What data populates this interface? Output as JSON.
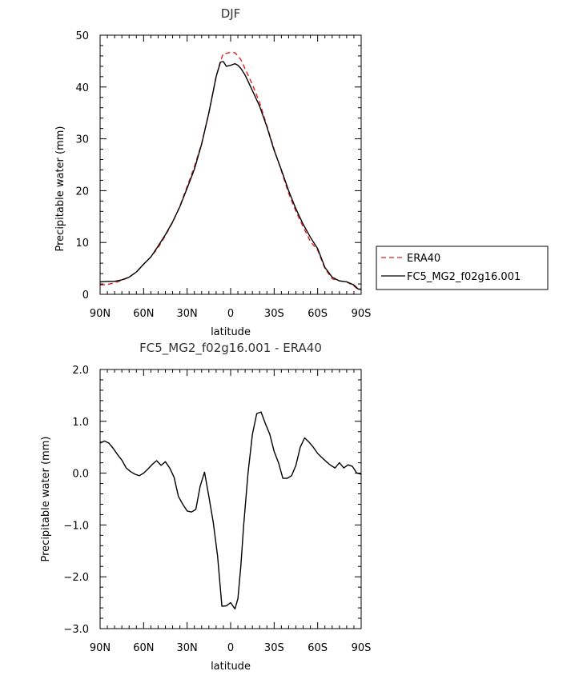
{
  "chart_data": [
    {
      "type": "line",
      "title": "DJF",
      "xlabel": "latitude",
      "ylabel": "Precipitable water (mm)",
      "xlim": [
        90,
        -90
      ],
      "ylim": [
        0,
        50
      ],
      "x_tick_values": [
        90,
        60,
        30,
        0,
        -30,
        -60,
        -90
      ],
      "x_tick_labels": [
        "90N",
        "60N",
        "30N",
        "0",
        "30S",
        "60S",
        "90S"
      ],
      "y_tick_values": [
        0,
        10,
        20,
        30,
        40,
        50
      ],
      "y_tick_labels": [
        "0",
        "10",
        "20",
        "30",
        "40",
        "50"
      ],
      "legend": "outside-right",
      "grid": false,
      "x": [
        90,
        85,
        80,
        75,
        70,
        65,
        60,
        55,
        50,
        45,
        40,
        35,
        30,
        25,
        20,
        15,
        10,
        7,
        5,
        3,
        0,
        -3,
        -5,
        -7,
        -10,
        -15,
        -20,
        -25,
        -30,
        -35,
        -40,
        -45,
        -50,
        -55,
        -60,
        -65,
        -70,
        -75,
        -80,
        -85,
        -88,
        -90
      ],
      "series": [
        {
          "name": "ERA40",
          "color": "#e02020",
          "dash": true,
          "y": [
            1.8,
            1.9,
            2.2,
            2.7,
            3.3,
            4.3,
            5.8,
            7.2,
            9.0,
            11.3,
            13.9,
            17.0,
            20.8,
            24.6,
            29.1,
            35.0,
            42.0,
            45.0,
            46.5,
            46.5,
            46.7,
            46.6,
            46.0,
            45.3,
            43.5,
            40.5,
            37.0,
            32.5,
            28.0,
            23.8,
            19.5,
            16.0,
            13.0,
            10.2,
            8.5,
            5.0,
            3.0,
            2.6,
            2.4,
            1.6,
            0.9,
            0.9
          ]
        },
        {
          "name": "FC5_MG2_f02g16.001",
          "color": "#000000",
          "dash": false,
          "y": [
            2.4,
            2.5,
            2.5,
            2.8,
            3.3,
            4.3,
            5.8,
            7.2,
            9.3,
            11.5,
            14.0,
            16.9,
            20.5,
            24.1,
            29.0,
            35.0,
            42.0,
            44.8,
            44.9,
            44.0,
            44.2,
            44.5,
            44.2,
            43.6,
            42.3,
            39.3,
            36.3,
            32.3,
            27.8,
            24.0,
            20.0,
            16.5,
            13.5,
            11.0,
            8.8,
            5.2,
            3.3,
            2.6,
            2.4,
            1.8,
            1.0,
            1.0
          ]
        }
      ]
    },
    {
      "type": "line",
      "title": "FC5_MG2_f02g16.001 - ERA40",
      "xlabel": "latitude",
      "ylabel": "Precipitable water (mm)",
      "xlim": [
        90,
        -90
      ],
      "ylim": [
        -3.0,
        2.0
      ],
      "x_tick_values": [
        90,
        60,
        30,
        0,
        -30,
        -60,
        -90
      ],
      "x_tick_labels": [
        "90N",
        "60N",
        "30N",
        "0",
        "30S",
        "60S",
        "90S"
      ],
      "y_tick_values": [
        2.0,
        1.0,
        0.0,
        -1.0,
        -2.0,
        -3.0
      ],
      "y_tick_labels": [
        "2.0",
        "1.0",
        "0.0",
        "−1.0",
        "−2.0",
        "−3.0"
      ],
      "grid": false,
      "x": [
        90,
        87,
        84,
        81,
        78,
        75,
        72,
        69,
        66,
        63,
        60,
        57,
        54,
        51,
        48,
        45,
        42,
        39,
        36,
        33,
        30,
        27,
        24,
        21,
        18,
        15,
        12,
        9,
        6,
        3,
        0,
        -3,
        -5,
        -7,
        -9,
        -12,
        -15,
        -18,
        -21,
        -24,
        -27,
        -30,
        -33,
        -36,
        -39,
        -42,
        -45,
        -48,
        -51,
        -54,
        -57,
        -60,
        -63,
        -66,
        -69,
        -72,
        -75,
        -78,
        -81,
        -84,
        -87,
        -90
      ],
      "series": [
        {
          "name": "FC5_MG2_f02g16.001 - ERA40",
          "color": "#000000",
          "dash": false,
          "y": [
            0.58,
            0.62,
            0.58,
            0.48,
            0.36,
            0.25,
            0.1,
            0.03,
            -0.02,
            -0.05,
            0.0,
            0.08,
            0.17,
            0.24,
            0.15,
            0.22,
            0.1,
            -0.08,
            -0.45,
            -0.6,
            -0.73,
            -0.75,
            -0.7,
            -0.25,
            0.02,
            -0.45,
            -0.95,
            -1.6,
            -2.57,
            -2.56,
            -2.5,
            -2.62,
            -2.42,
            -1.8,
            -1.0,
            0.0,
            0.75,
            1.15,
            1.18,
            0.95,
            0.75,
            0.42,
            0.2,
            -0.1,
            -0.1,
            -0.05,
            0.15,
            0.5,
            0.68,
            0.6,
            0.5,
            0.38,
            0.3,
            0.22,
            0.15,
            0.1,
            0.2,
            0.1,
            0.16,
            0.13,
            0.0,
            -0.02
          ]
        }
      ]
    }
  ]
}
